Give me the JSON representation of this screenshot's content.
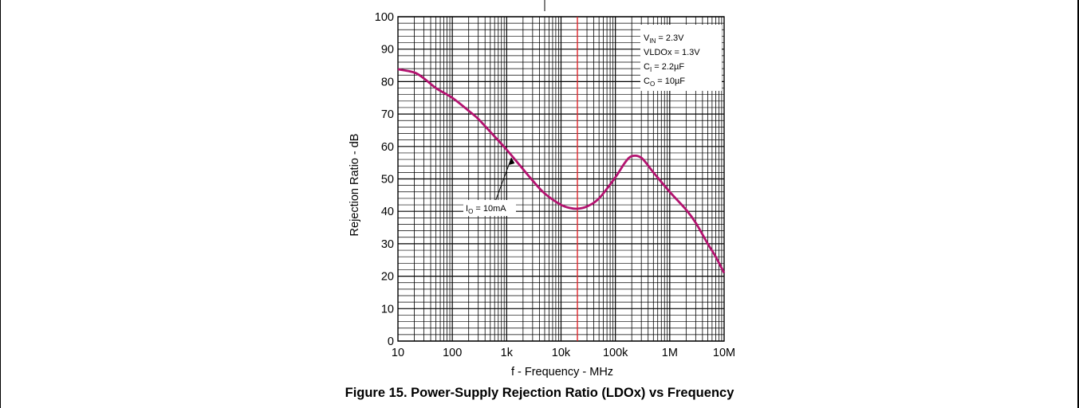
{
  "figure_caption": "Figure 15. Power-Supply Rejection Ratio (LDOx) vs Frequency",
  "chart_data": {
    "type": "line",
    "title": "",
    "xlabel": "f - Frequency - MHz",
    "ylabel": "Rejection Ratio - dB",
    "x_scale": "log",
    "xlim": [
      10,
      10000000
    ],
    "ylim": [
      0,
      100
    ],
    "grid": true,
    "x_tick_labels": [
      "10",
      "100",
      "1k",
      "10k",
      "100k",
      "1M",
      "10M"
    ],
    "y_tick_labels": [
      "0",
      "10",
      "20",
      "30",
      "40",
      "50",
      "60",
      "70",
      "80",
      "90",
      "100"
    ],
    "series": [
      {
        "name": "IO = 10mA",
        "color": "#b3126f",
        "x": [
          10,
          20,
          30,
          50,
          100,
          200,
          300,
          500,
          1000,
          2000,
          3000,
          5000,
          10000,
          15000,
          20000,
          30000,
          50000,
          100000,
          150000,
          200000,
          300000,
          500000,
          1000000,
          2000000,
          3000000,
          5000000,
          7000000,
          10000000
        ],
        "y": [
          83.8,
          82.8,
          81,
          78,
          75,
          71,
          68.5,
          64.5,
          59,
          53,
          49.5,
          45.5,
          42,
          41,
          40.8,
          41.5,
          44,
          50.5,
          55,
          57,
          56.5,
          52,
          46,
          40.5,
          36.5,
          30,
          26,
          21
        ]
      }
    ],
    "reference_line": {
      "x": 20000,
      "color": "#e0262b"
    },
    "conditions": [
      {
        "label": "V",
        "sub": "IN",
        "value": " = 2.3V"
      },
      {
        "label": "VLDOx",
        "sub": "",
        "value": "  = 1.3V"
      },
      {
        "label": "C",
        "sub": "I",
        "value": " = 2.2µF"
      },
      {
        "label": "C",
        "sub": "O",
        "value": " = 10µF"
      }
    ],
    "annotation": {
      "label": "I",
      "sub": "O",
      "value": " = 10mA",
      "x": 1000,
      "y": 58
    }
  }
}
